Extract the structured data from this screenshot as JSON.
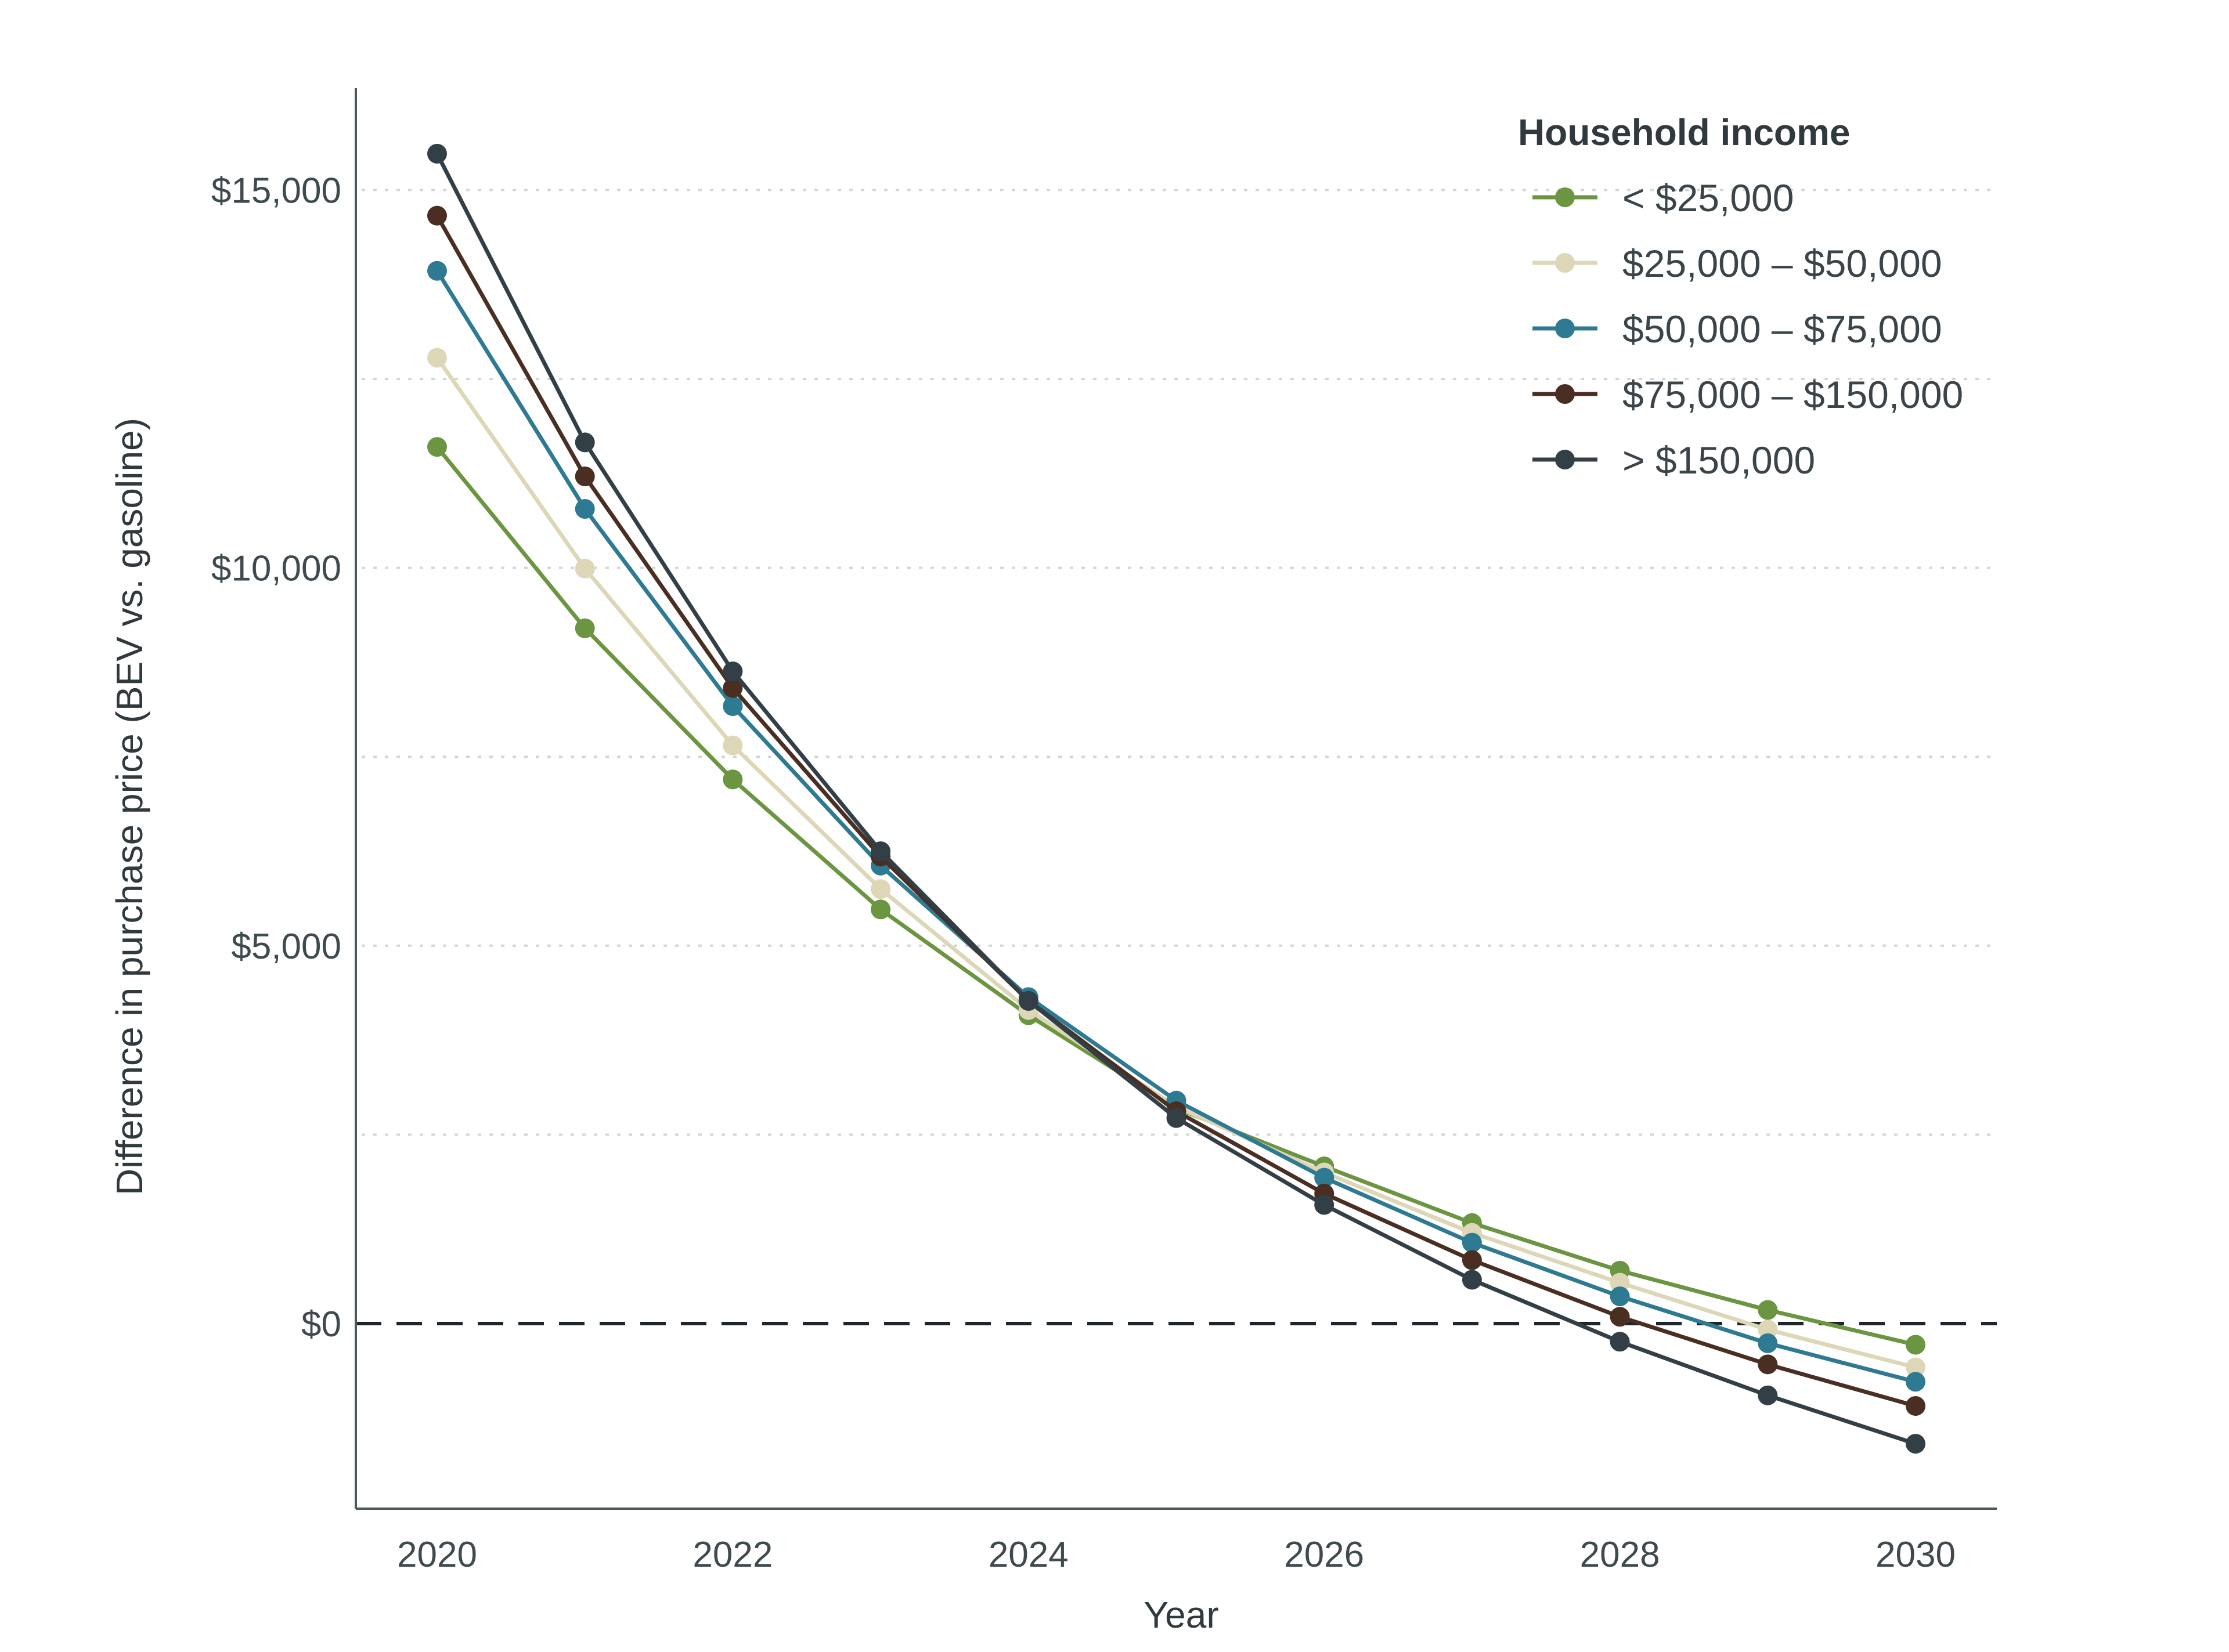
{
  "chart_data": {
    "type": "line",
    "title": "",
    "xlabel": "Year",
    "ylabel": "Difference in purchase price (BEV vs. gasoline)",
    "x": [
      2020,
      2021,
      2022,
      2023,
      2024,
      2025,
      2026,
      2027,
      2028,
      2029,
      2030
    ],
    "xlim": [
      2019.5,
      2030.5
    ],
    "ylim": [
      -2400,
      16300
    ],
    "x_ticks": [
      2020,
      2022,
      2024,
      2026,
      2028,
      2030
    ],
    "x_tick_labels": [
      "2020",
      "2022",
      "2024",
      "2026",
      "2028",
      "2030"
    ],
    "y_ticks": [
      0,
      5000,
      10000,
      15000
    ],
    "y_tick_labels": [
      "$0",
      "$5,000",
      "$10,000",
      "$15,000"
    ],
    "minor_gridlines": [
      2500,
      7500,
      12500
    ],
    "grid": "horizontal dotted",
    "reference_line": {
      "y": 0,
      "style": "dashed"
    },
    "legend": {
      "title": "Household income",
      "placement": "top-right"
    },
    "series": [
      {
        "name": "< $25,000",
        "color": "#6b9540",
        "values": [
          11600,
          9200,
          7200,
          5480,
          4080,
          2850,
          2080,
          1330,
          700,
          180,
          -280
        ]
      },
      {
        "name": "$25,000 – $50,000",
        "color": "#ddd7b8",
        "values": [
          12780,
          9990,
          7650,
          5750,
          4150,
          2870,
          2000,
          1200,
          540,
          -80,
          -580
        ]
      },
      {
        "name": "$50,000 – $75,000",
        "color": "#2e7a92",
        "values": [
          13930,
          10780,
          8170,
          6060,
          4320,
          2950,
          1930,
          1070,
          360,
          -260,
          -770
        ]
      },
      {
        "name": "$75,000 – $150,000",
        "color": "#4a2e22",
        "values": [
          14660,
          11210,
          8410,
          6180,
          4270,
          2810,
          1720,
          840,
          90,
          -540,
          -1090
        ]
      },
      {
        "name": "> $150,000",
        "color": "#333f47",
        "values": [
          15480,
          11660,
          8630,
          6250,
          4270,
          2720,
          1570,
          580,
          -240,
          -950,
          -1590
        ]
      }
    ]
  }
}
